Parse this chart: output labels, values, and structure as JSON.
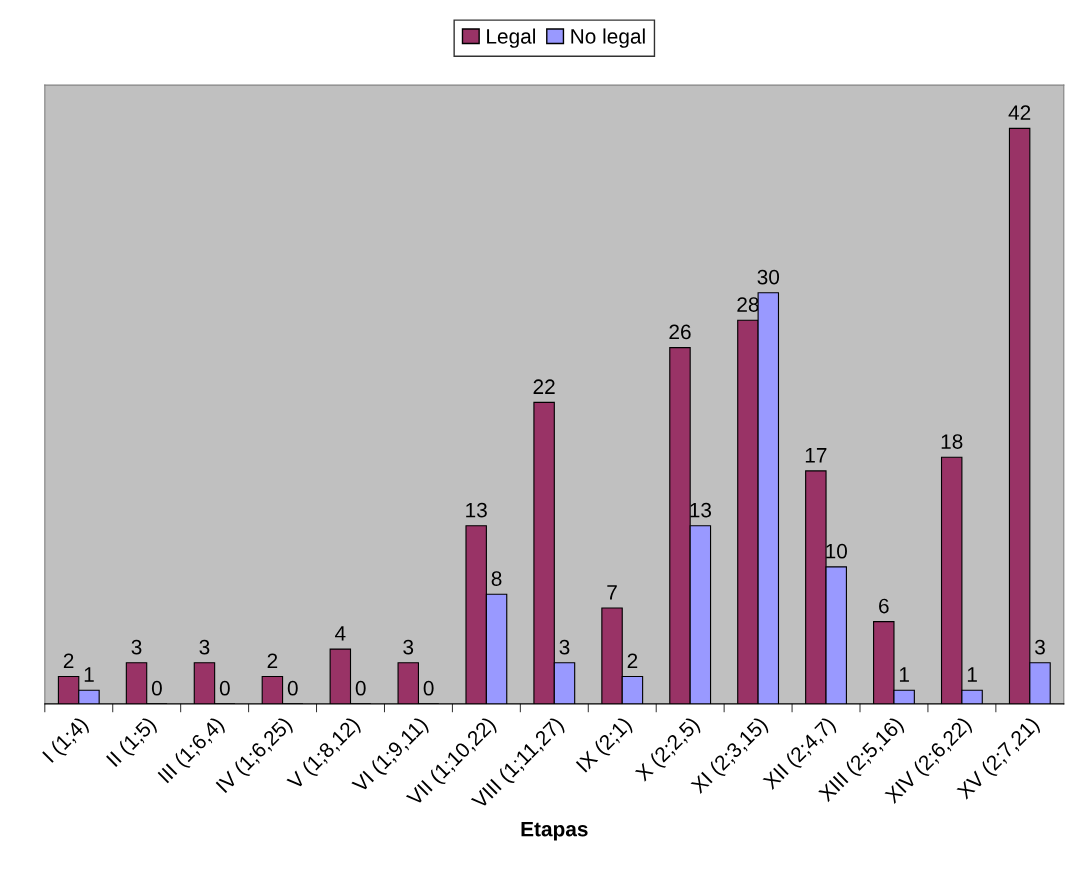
{
  "chart_data": {
    "type": "bar",
    "xlabel": "Etapas",
    "categories": [
      "I (1;4)",
      "II (1;5)",
      "III (1;6,4)",
      "IV (1;6,25)",
      "V (1;8,12)",
      "VI (1;9,11)",
      "VII (1;10,22)",
      "VIII (1;11,27)",
      "IX (2;1)",
      "X (2;2,5)",
      "XI (2;3,15)",
      "XII (2;4,7)",
      "XIII (2;5,16)",
      "XIV (2;6,22)",
      "XV (2;7,21)"
    ],
    "series": [
      {
        "name": "Legal",
        "color": "#993366",
        "values": [
          2,
          3,
          3,
          2,
          4,
          3,
          13,
          22,
          7,
          26,
          28,
          17,
          6,
          18,
          42
        ]
      },
      {
        "name": "No legal",
        "color": "#9999ff",
        "values": [
          1,
          0,
          0,
          0,
          0,
          0,
          8,
          3,
          2,
          13,
          30,
          10,
          1,
          1,
          3
        ]
      }
    ],
    "data_labels": true,
    "legend": "top",
    "grid": false
  }
}
